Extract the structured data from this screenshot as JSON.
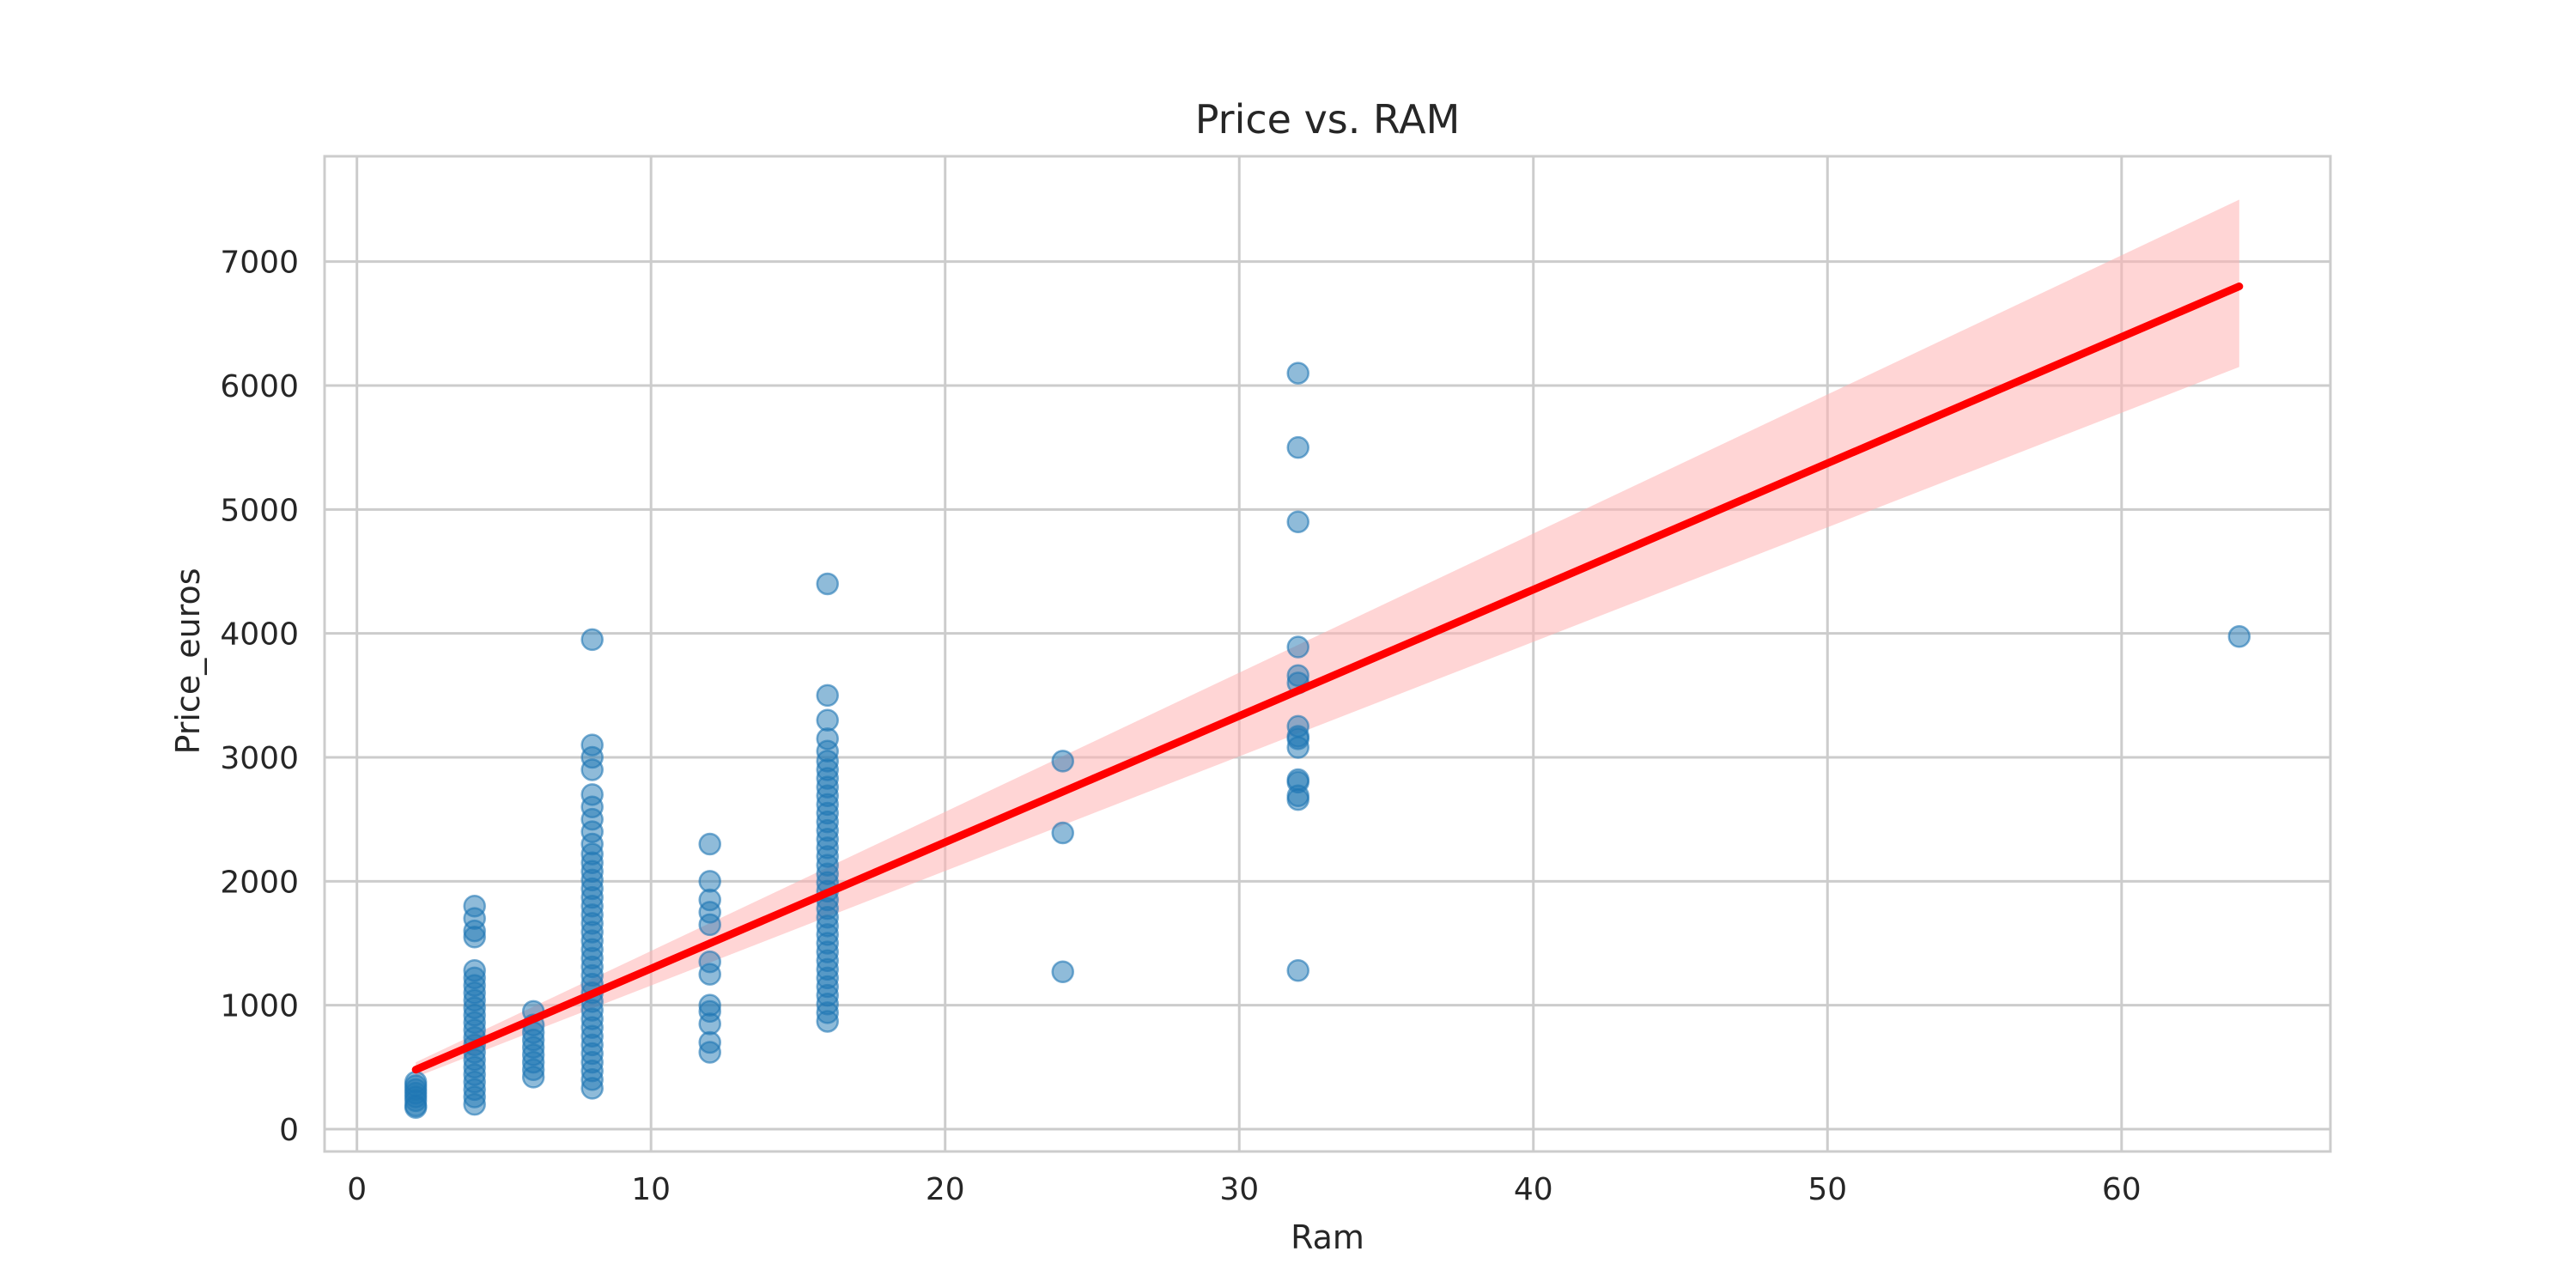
{
  "chart_data": {
    "type": "scatter",
    "title": "Price vs. RAM",
    "xlabel": "Ram",
    "ylabel": "Price_euros",
    "xlim": [
      -1.1,
      67.1
    ],
    "ylim": [
      -180,
      7850
    ],
    "x_ticks": [
      0,
      10,
      20,
      30,
      40,
      50,
      60
    ],
    "y_ticks": [
      0,
      1000,
      2000,
      3000,
      4000,
      5000,
      6000,
      7000
    ],
    "grid": true,
    "legend": "none",
    "colors": {
      "points": "#1f77b4",
      "regression_line": "#ff0000",
      "confidence_band": "#ffb3b3",
      "grid": "#cccccc",
      "axes_frame": "#cccccc"
    },
    "points": [
      {
        "x": 2,
        "y": 190
      },
      {
        "x": 2,
        "y": 230
      },
      {
        "x": 2,
        "y": 260
      },
      {
        "x": 2,
        "y": 290
      },
      {
        "x": 2,
        "y": 320
      },
      {
        "x": 2,
        "y": 350
      },
      {
        "x": 2,
        "y": 380
      },
      {
        "x": 2,
        "y": 175
      },
      {
        "x": 4,
        "y": 200
      },
      {
        "x": 4,
        "y": 260
      },
      {
        "x": 4,
        "y": 320
      },
      {
        "x": 4,
        "y": 380
      },
      {
        "x": 4,
        "y": 440
      },
      {
        "x": 4,
        "y": 500
      },
      {
        "x": 4,
        "y": 560
      },
      {
        "x": 4,
        "y": 620
      },
      {
        "x": 4,
        "y": 680
      },
      {
        "x": 4,
        "y": 740
      },
      {
        "x": 4,
        "y": 800
      },
      {
        "x": 4,
        "y": 860
      },
      {
        "x": 4,
        "y": 920
      },
      {
        "x": 4,
        "y": 980
      },
      {
        "x": 4,
        "y": 1040
      },
      {
        "x": 4,
        "y": 1100
      },
      {
        "x": 4,
        "y": 1160
      },
      {
        "x": 4,
        "y": 1220
      },
      {
        "x": 4,
        "y": 1280
      },
      {
        "x": 4,
        "y": 1550
      },
      {
        "x": 4,
        "y": 1600
      },
      {
        "x": 4,
        "y": 1700
      },
      {
        "x": 4,
        "y": 1800
      },
      {
        "x": 6,
        "y": 420
      },
      {
        "x": 6,
        "y": 480
      },
      {
        "x": 6,
        "y": 540
      },
      {
        "x": 6,
        "y": 600
      },
      {
        "x": 6,
        "y": 660
      },
      {
        "x": 6,
        "y": 720
      },
      {
        "x": 6,
        "y": 780
      },
      {
        "x": 6,
        "y": 840
      },
      {
        "x": 6,
        "y": 950
      },
      {
        "x": 8,
        "y": 330
      },
      {
        "x": 8,
        "y": 400
      },
      {
        "x": 8,
        "y": 470
      },
      {
        "x": 8,
        "y": 540
      },
      {
        "x": 8,
        "y": 610
      },
      {
        "x": 8,
        "y": 680
      },
      {
        "x": 8,
        "y": 750
      },
      {
        "x": 8,
        "y": 820
      },
      {
        "x": 8,
        "y": 890
      },
      {
        "x": 8,
        "y": 960
      },
      {
        "x": 8,
        "y": 1030
      },
      {
        "x": 8,
        "y": 1100
      },
      {
        "x": 8,
        "y": 1170
      },
      {
        "x": 8,
        "y": 1240
      },
      {
        "x": 8,
        "y": 1310
      },
      {
        "x": 8,
        "y": 1380
      },
      {
        "x": 8,
        "y": 1450
      },
      {
        "x": 8,
        "y": 1520
      },
      {
        "x": 8,
        "y": 1590
      },
      {
        "x": 8,
        "y": 1660
      },
      {
        "x": 8,
        "y": 1730
      },
      {
        "x": 8,
        "y": 1800
      },
      {
        "x": 8,
        "y": 1870
      },
      {
        "x": 8,
        "y": 1940
      },
      {
        "x": 8,
        "y": 2010
      },
      {
        "x": 8,
        "y": 2080
      },
      {
        "x": 8,
        "y": 2150
      },
      {
        "x": 8,
        "y": 2220
      },
      {
        "x": 8,
        "y": 2300
      },
      {
        "x": 8,
        "y": 2400
      },
      {
        "x": 8,
        "y": 2500
      },
      {
        "x": 8,
        "y": 2600
      },
      {
        "x": 8,
        "y": 2700
      },
      {
        "x": 8,
        "y": 2900
      },
      {
        "x": 8,
        "y": 3000
      },
      {
        "x": 8,
        "y": 3100
      },
      {
        "x": 8,
        "y": 3950
      },
      {
        "x": 12,
        "y": 620
      },
      {
        "x": 12,
        "y": 700
      },
      {
        "x": 12,
        "y": 850
      },
      {
        "x": 12,
        "y": 950
      },
      {
        "x": 12,
        "y": 1000
      },
      {
        "x": 12,
        "y": 1250
      },
      {
        "x": 12,
        "y": 1350
      },
      {
        "x": 12,
        "y": 1650
      },
      {
        "x": 12,
        "y": 1750
      },
      {
        "x": 12,
        "y": 1850
      },
      {
        "x": 12,
        "y": 2000
      },
      {
        "x": 12,
        "y": 2300
      },
      {
        "x": 16,
        "y": 870
      },
      {
        "x": 16,
        "y": 940
      },
      {
        "x": 16,
        "y": 1010
      },
      {
        "x": 16,
        "y": 1080
      },
      {
        "x": 16,
        "y": 1150
      },
      {
        "x": 16,
        "y": 1220
      },
      {
        "x": 16,
        "y": 1290
      },
      {
        "x": 16,
        "y": 1360
      },
      {
        "x": 16,
        "y": 1430
      },
      {
        "x": 16,
        "y": 1500
      },
      {
        "x": 16,
        "y": 1570
      },
      {
        "x": 16,
        "y": 1640
      },
      {
        "x": 16,
        "y": 1710
      },
      {
        "x": 16,
        "y": 1780
      },
      {
        "x": 16,
        "y": 1850
      },
      {
        "x": 16,
        "y": 1920
      },
      {
        "x": 16,
        "y": 1990
      },
      {
        "x": 16,
        "y": 2060
      },
      {
        "x": 16,
        "y": 2130
      },
      {
        "x": 16,
        "y": 2200
      },
      {
        "x": 16,
        "y": 2270
      },
      {
        "x": 16,
        "y": 2340
      },
      {
        "x": 16,
        "y": 2410
      },
      {
        "x": 16,
        "y": 2480
      },
      {
        "x": 16,
        "y": 2550
      },
      {
        "x": 16,
        "y": 2620
      },
      {
        "x": 16,
        "y": 2690
      },
      {
        "x": 16,
        "y": 2760
      },
      {
        "x": 16,
        "y": 2830
      },
      {
        "x": 16,
        "y": 2900
      },
      {
        "x": 16,
        "y": 2970
      },
      {
        "x": 16,
        "y": 3050
      },
      {
        "x": 16,
        "y": 3150
      },
      {
        "x": 16,
        "y": 3300
      },
      {
        "x": 16,
        "y": 3500
      },
      {
        "x": 16,
        "y": 4400
      },
      {
        "x": 24,
        "y": 1270
      },
      {
        "x": 24,
        "y": 2390
      },
      {
        "x": 24,
        "y": 2970
      },
      {
        "x": 32,
        "y": 1280
      },
      {
        "x": 32,
        "y": 2660
      },
      {
        "x": 32,
        "y": 2690
      },
      {
        "x": 32,
        "y": 2800
      },
      {
        "x": 32,
        "y": 2820
      },
      {
        "x": 32,
        "y": 3080
      },
      {
        "x": 32,
        "y": 3150
      },
      {
        "x": 32,
        "y": 3170
      },
      {
        "x": 32,
        "y": 3250
      },
      {
        "x": 32,
        "y": 3600
      },
      {
        "x": 32,
        "y": 3660
      },
      {
        "x": 32,
        "y": 3890
      },
      {
        "x": 32,
        "y": 4900
      },
      {
        "x": 32,
        "y": 5500
      },
      {
        "x": 32,
        "y": 6100
      },
      {
        "x": 64,
        "y": 3975
      }
    ],
    "regression": {
      "x": [
        2,
        64
      ],
      "y": [
        480,
        6800
      ],
      "ci_lower": [
        420,
        6150
      ],
      "ci_upper": [
        540,
        7500
      ]
    }
  }
}
